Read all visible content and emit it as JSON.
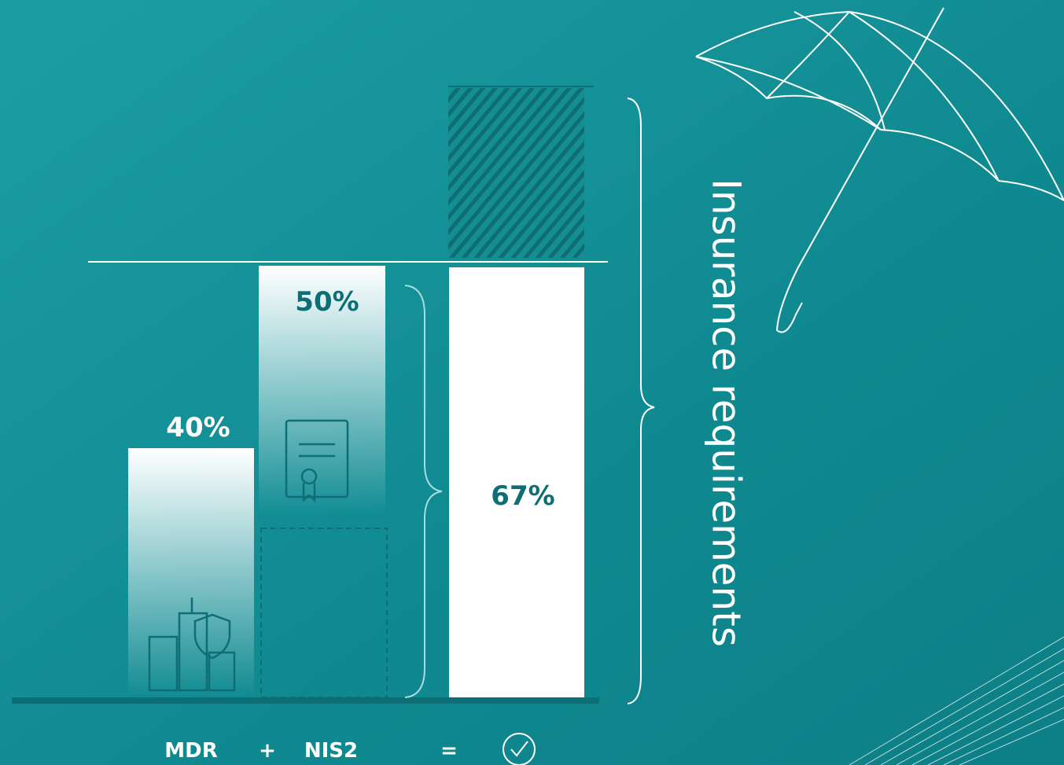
{
  "bars": [
    {
      "value_label": "40%"
    },
    {
      "value_label": "50%"
    },
    {
      "value_label": "67%"
    }
  ],
  "side_label": "Insurance requirements",
  "equation": [
    "MDR",
    "+",
    "NIS2",
    "="
  ]
}
